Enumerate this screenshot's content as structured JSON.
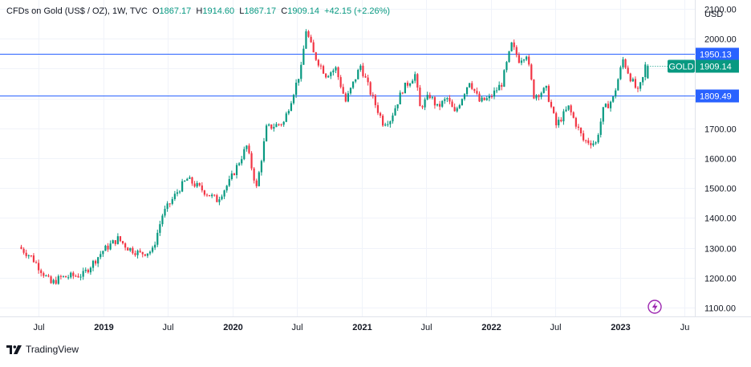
{
  "header": {
    "symbol_title": "CFDs on Gold (US$ / OZ), 1W, TVC",
    "open_label": "O",
    "open_value": "1867.17",
    "high_label": "H",
    "high_value": "1914.60",
    "low_label": "L",
    "low_value": "1867.17",
    "close_label": "C",
    "close_value": "1909.14",
    "change": "+42.15 (+2.26%)"
  },
  "footer": {
    "brand": "TradingView"
  },
  "colors": {
    "up": "#089981",
    "down": "#f23645",
    "hline": "#2962ff",
    "grid": "#f0f3fa",
    "axis_text": "#131722",
    "badge_gold": "#089981",
    "lightning": "#9c27b0"
  },
  "chart_data": {
    "type": "candlestick",
    "timeframe": "1W",
    "currency": "USD",
    "ylim": [
      1070,
      2130
    ],
    "y_ticks": [
      "1100.00",
      "1200.00",
      "1300.00",
      "1400.00",
      "1500.00",
      "1600.00",
      "1700.00",
      "1800.00",
      "1900.00",
      "2000.00",
      "2100.00"
    ],
    "x_ticks": [
      {
        "date": "2018-07-01",
        "label": "Jul",
        "bold": false
      },
      {
        "date": "2019-01-01",
        "label": "2019",
        "bold": true
      },
      {
        "date": "2019-07-01",
        "label": "Jul",
        "bold": false
      },
      {
        "date": "2020-01-01",
        "label": "2020",
        "bold": true
      },
      {
        "date": "2020-07-01",
        "label": "Jul",
        "bold": false
      },
      {
        "date": "2021-01-01",
        "label": "2021",
        "bold": true
      },
      {
        "date": "2021-07-01",
        "label": "Jul",
        "bold": false
      },
      {
        "date": "2022-01-01",
        "label": "2022",
        "bold": true
      },
      {
        "date": "2022-07-01",
        "label": "Jul",
        "bold": false
      },
      {
        "date": "2023-01-01",
        "label": "2023",
        "bold": true
      },
      {
        "date": "2023-07-01",
        "label": "Ju",
        "bold": false
      }
    ],
    "horizontal_lines": [
      {
        "value": 1950.13,
        "label": "1950.13"
      },
      {
        "value": 1809.49,
        "label": "1809.49"
      }
    ],
    "last_price": {
      "value": 1909.14,
      "label": "1909.14",
      "symbol": "GOLD"
    },
    "start_date": "2018-05-14",
    "end_date": "2023-03-20",
    "anchors": [
      [
        "2018-05-14",
        1303
      ],
      [
        "2018-06-18",
        1270
      ],
      [
        "2018-08-13",
        1180
      ],
      [
        "2018-09-10",
        1200
      ],
      [
        "2018-11-12",
        1210
      ],
      [
        "2019-01-07",
        1290
      ],
      [
        "2019-02-18",
        1330
      ],
      [
        "2019-03-18",
        1300
      ],
      [
        "2019-04-22",
        1280
      ],
      [
        "2019-05-27",
        1290
      ],
      [
        "2019-06-24",
        1410
      ],
      [
        "2019-08-12",
        1500
      ],
      [
        "2019-09-02",
        1530
      ],
      [
        "2019-10-07",
        1500
      ],
      [
        "2019-11-25",
        1460
      ],
      [
        "2019-12-30",
        1520
      ],
      [
        "2020-02-17",
        1640
      ],
      [
        "2020-03-16",
        1500
      ],
      [
        "2020-04-13",
        1700
      ],
      [
        "2020-06-01",
        1720
      ],
      [
        "2020-07-20",
        1900
      ],
      [
        "2020-08-03",
        2030
      ],
      [
        "2020-08-24",
        1950
      ],
      [
        "2020-09-28",
        1880
      ],
      [
        "2020-10-26",
        1900
      ],
      [
        "2020-11-23",
        1790
      ],
      [
        "2021-01-04",
        1910
      ],
      [
        "2021-02-01",
        1820
      ],
      [
        "2021-03-08",
        1720
      ],
      [
        "2021-03-29",
        1730
      ],
      [
        "2021-05-03",
        1830
      ],
      [
        "2021-06-07",
        1880
      ],
      [
        "2021-06-21",
        1770
      ],
      [
        "2021-07-19",
        1810
      ],
      [
        "2021-08-09",
        1770
      ],
      [
        "2021-09-06",
        1800
      ],
      [
        "2021-09-27",
        1750
      ],
      [
        "2021-11-08",
        1860
      ],
      [
        "2021-12-06",
        1790
      ],
      [
        "2022-01-03",
        1800
      ],
      [
        "2022-02-07",
        1850
      ],
      [
        "2022-03-07",
        1980
      ],
      [
        "2022-03-28",
        1930
      ],
      [
        "2022-04-18",
        1950
      ],
      [
        "2022-05-09",
        1810
      ],
      [
        "2022-06-13",
        1830
      ],
      [
        "2022-07-11",
        1710
      ],
      [
        "2022-08-15",
        1770
      ],
      [
        "2022-09-26",
        1660
      ],
      [
        "2022-10-31",
        1650
      ],
      [
        "2022-11-21",
        1760
      ],
      [
        "2022-12-19",
        1800
      ],
      [
        "2023-01-16",
        1930
      ],
      [
        "2023-02-06",
        1870
      ],
      [
        "2023-02-27",
        1820
      ],
      [
        "2023-03-13",
        1867.17
      ],
      [
        "2023-03-20",
        1909.14
      ]
    ]
  }
}
